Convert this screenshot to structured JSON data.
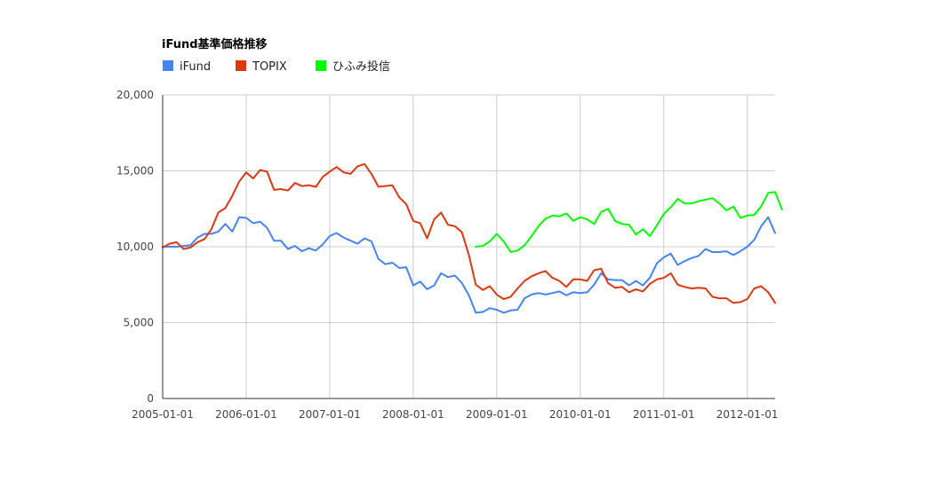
{
  "chart_data": {
    "type": "line",
    "title": "iFund基準価格推移",
    "xlabel": "",
    "ylabel": "",
    "x_start": "2005-01",
    "x_end": "2012-05",
    "x_ticks": [
      "2005-01-01",
      "2006-01-01",
      "2007-01-01",
      "2008-01-01",
      "2009-01-01",
      "2010-01-01",
      "2011-01-01",
      "2012-01-01"
    ],
    "ylim": [
      0,
      20000
    ],
    "y_ticks": [
      0,
      5000,
      10000,
      15000,
      20000
    ],
    "y_tick_labels": [
      "0",
      "5,000",
      "10,000",
      "15,000",
      "20,000"
    ],
    "grid": true,
    "legend_position": "top-left",
    "series": [
      {
        "name": "iFund",
        "color": "#4684ee",
        "start": "2005-01",
        "values": [
          10000,
          10000,
          10000,
          10050,
          10100,
          10600,
          10850,
          10850,
          11000,
          11500,
          11000,
          11950,
          11900,
          11550,
          11650,
          11250,
          10400,
          10400,
          9850,
          10050,
          9700,
          9900,
          9750,
          10150,
          10700,
          10900,
          10600,
          10400,
          10200,
          10550,
          10350,
          9200,
          8850,
          8950,
          8600,
          8650,
          7450,
          7700,
          7200,
          7450,
          8250,
          8000,
          8100,
          7600,
          6800,
          5650,
          5700,
          5950,
          5850,
          5650,
          5800,
          5850,
          6600,
          6850,
          6950,
          6850,
          6950,
          7050,
          6800,
          7000,
          6950,
          7000,
          7500,
          8250,
          7850,
          7800,
          7800,
          7450,
          7750,
          7450,
          7950,
          8900,
          9300,
          9550,
          8800,
          9050,
          9250,
          9400,
          9850,
          9650,
          9650,
          9700,
          9450,
          9700,
          10000,
          10450,
          11350,
          11950,
          10900
        ]
      },
      {
        "name": "TOPIX",
        "color": "#dc3912",
        "start": "2005-01",
        "values": [
          9950,
          10200,
          10300,
          9850,
          9950,
          10300,
          10500,
          11150,
          12250,
          12550,
          13350,
          14300,
          14900,
          14500,
          15050,
          14950,
          13750,
          13800,
          13700,
          14200,
          14000,
          14050,
          13950,
          14600,
          14950,
          15250,
          14900,
          14800,
          15300,
          15450,
          14800,
          13950,
          14000,
          14050,
          13250,
          12800,
          11700,
          11550,
          10550,
          11800,
          12250,
          11450,
          11350,
          10950,
          9450,
          7500,
          7150,
          7400,
          6850,
          6550,
          6700,
          7250,
          7750,
          8050,
          8250,
          8400,
          7950,
          7750,
          7350,
          7850,
          7850,
          7750,
          8450,
          8550,
          7600,
          7300,
          7350,
          7000,
          7200,
          7050,
          7550,
          7850,
          7950,
          8250,
          7500,
          7350,
          7250,
          7300,
          7250,
          6700,
          6600,
          6600,
          6300,
          6350,
          6550,
          7250,
          7400,
          7000,
          6300
        ]
      },
      {
        "name": "ひふみ投信",
        "color": "#00ff00",
        "start": "2008-10",
        "values": [
          10000,
          10050,
          10350,
          10850,
          10350,
          9650,
          9750,
          10100,
          10700,
          11350,
          11850,
          12050,
          12000,
          12200,
          11700,
          11950,
          11800,
          11500,
          12300,
          12500,
          11700,
          11500,
          11450,
          10800,
          11150,
          10700,
          11400,
          12150,
          12600,
          13150,
          12850,
          12850,
          13000,
          13100,
          13200,
          12850,
          12400,
          12650,
          11900,
          12050,
          12100,
          12650,
          13550,
          13600,
          12450
        ]
      }
    ]
  }
}
